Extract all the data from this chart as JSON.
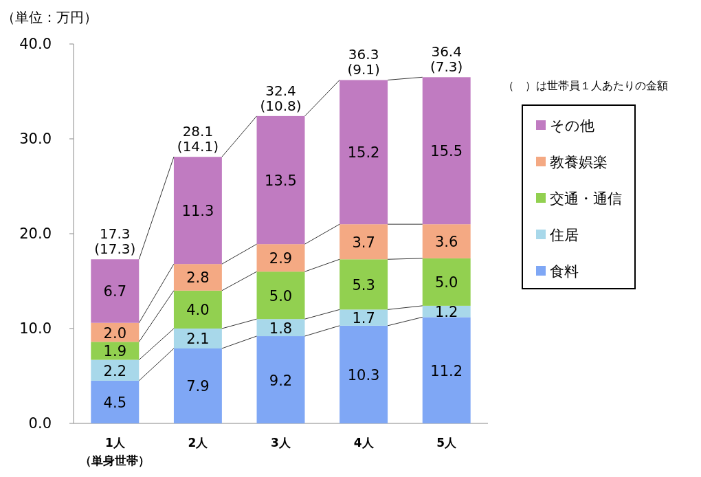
{
  "chart_data": {
    "type": "bar",
    "stacked": true,
    "ylabel": "（単位：万円）",
    "annotations": [
      "（　）は世帯員１人あたりの金額"
    ],
    "categories": [
      "1人（単身世帯）",
      "2人",
      "3人",
      "4人",
      "5人"
    ],
    "series": [
      {
        "name": "食料",
        "color": "#7fa7f5",
        "values": [
          4.5,
          7.9,
          9.2,
          10.3,
          11.2
        ],
        "value_labels": [
          "4.5",
          "7.9",
          "9.2",
          "10.3",
          "11.2"
        ]
      },
      {
        "name": "住居",
        "color": "#a8d8ea",
        "values": [
          2.2,
          2.1,
          1.8,
          1.7,
          1.2
        ],
        "value_labels": [
          "2.2",
          "2.1",
          "1.8",
          "1.7",
          "1.2"
        ]
      },
      {
        "name": "交通・通信",
        "color": "#92d050",
        "values": [
          1.9,
          4.0,
          5.0,
          5.3,
          5.0
        ],
        "value_labels": [
          "1.9",
          "4.0",
          "5.0",
          "5.3",
          "5.0"
        ]
      },
      {
        "name": "教養娯楽",
        "color": "#f4a983",
        "values": [
          2.0,
          2.8,
          2.9,
          3.7,
          3.6
        ],
        "value_labels": [
          "2.0",
          "2.8",
          "2.9",
          "3.7",
          "3.6"
        ]
      },
      {
        "name": "その他",
        "color": "#c07bc1",
        "values": [
          6.7,
          11.3,
          13.5,
          15.2,
          15.5
        ],
        "value_labels": [
          "6.7",
          "11.3",
          "13.5",
          "15.2",
          "15.5"
        ]
      }
    ],
    "totals": [
      "17.3\n(17.3)",
      "28.1\n(14.1)",
      "32.4\n(10.8)",
      "36.3\n(9.1)",
      "36.4\n(7.3)"
    ],
    "ylim": [
      0,
      40
    ],
    "yticks": [
      {
        "value": 0,
        "label": "0.0"
      },
      {
        "value": 10,
        "label": "10.0"
      },
      {
        "value": 20,
        "label": "20.0"
      },
      {
        "value": 30,
        "label": "30.0"
      },
      {
        "value": 40,
        "label": "40.0"
      }
    ],
    "grid": false,
    "legend": "right"
  }
}
